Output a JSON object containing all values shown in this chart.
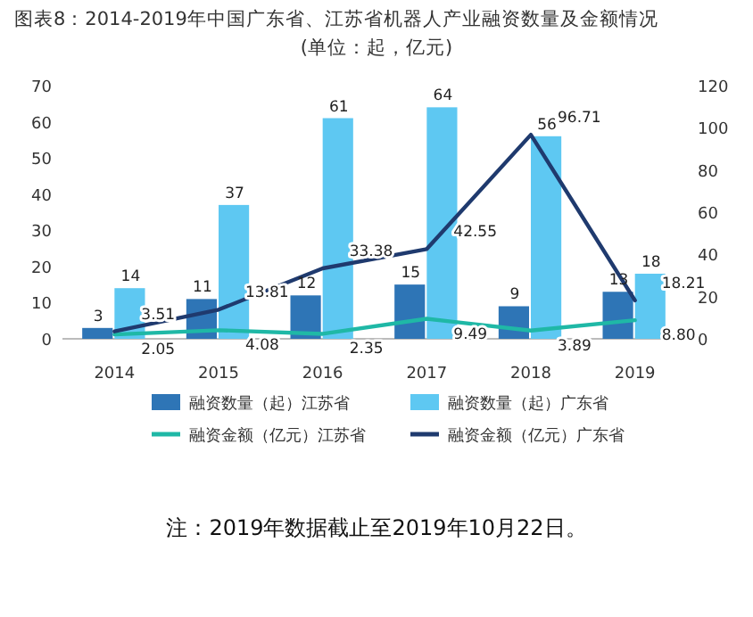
{
  "chart_data": {
    "type": "bar",
    "title": "图表8：2014-2019年中国广东省、江苏省机器人产业融资数量及金额情况",
    "subtitle": "(单位：起，亿元)",
    "categories": [
      "2014",
      "2015",
      "2016",
      "2017",
      "2018",
      "2019"
    ],
    "series": [
      {
        "name": "融资数量（起）江苏省",
        "color": "#2e75b6",
        "values": [
          3,
          11,
          12,
          15,
          9,
          13
        ]
      },
      {
        "name": "融资数量（起）广东省",
        "color": "#5ec8f2",
        "values": [
          14,
          37,
          61,
          64,
          56,
          18
        ]
      },
      {
        "name": "融资金额（亿元）江苏省",
        "type": "line",
        "axis": "y2",
        "color": "#1fb8a6",
        "values": [
          2.05,
          4.08,
          2.35,
          9.49,
          3.89,
          8.8
        ],
        "value_labels": [
          "2.05",
          "4.08",
          "2.35",
          "9.49",
          "3.89",
          "8.80"
        ]
      },
      {
        "name": "融资金额（亿元）广东省",
        "type": "line",
        "axis": "y2",
        "color": "#1f3a6e",
        "values": [
          3.51,
          13.81,
          33.38,
          42.55,
          96.71,
          18.21
        ],
        "value_labels": [
          "3.51",
          "13.81",
          "33.38",
          "42.55",
          "96.71",
          "18.21"
        ]
      }
    ],
    "ylim": [
      0,
      70
    ],
    "yticks": [
      0,
      10,
      20,
      30,
      40,
      50,
      60,
      70
    ],
    "y2lim": [
      0,
      120
    ],
    "y2ticks": [
      0,
      20,
      40,
      60,
      80,
      100,
      120
    ],
    "legend": "bottom",
    "data_labels": true,
    "annotations": [
      "注：2019年数据截止至2019年10月22日。"
    ]
  }
}
